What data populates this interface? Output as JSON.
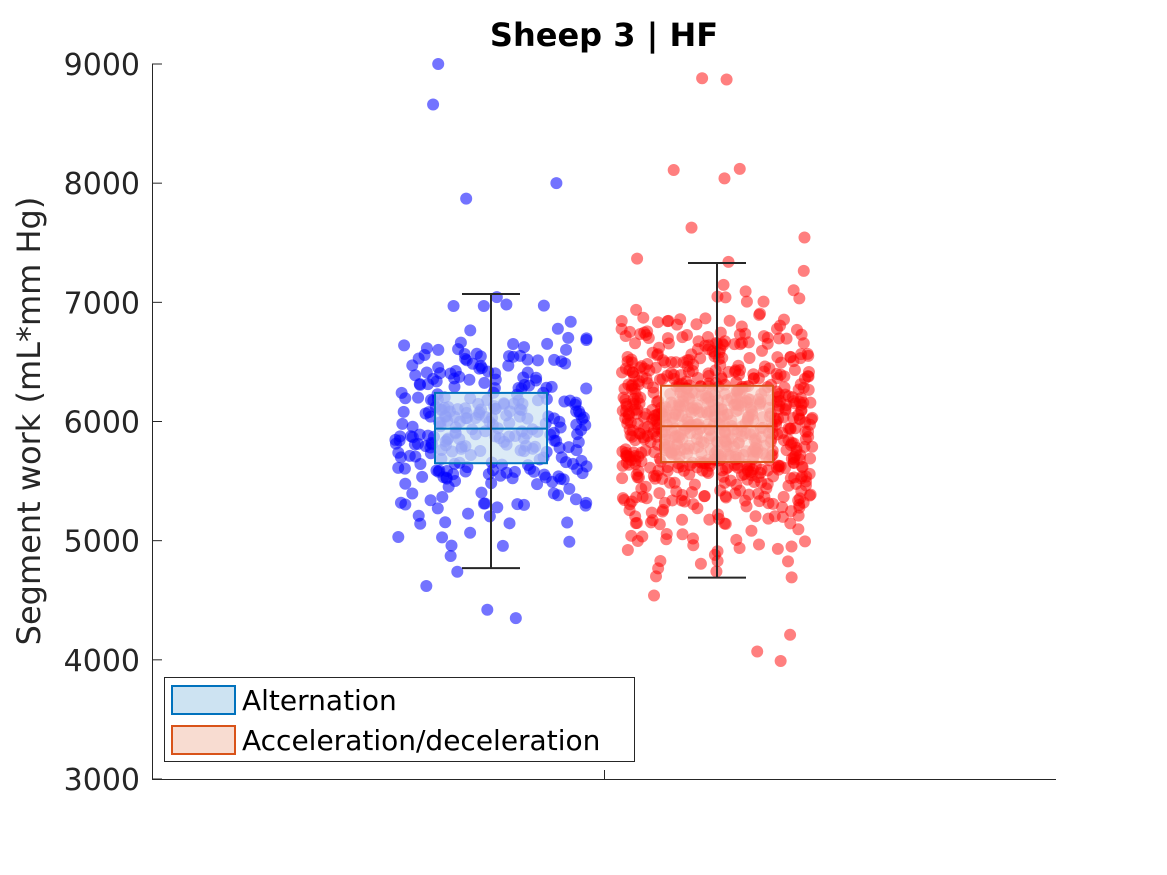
{
  "chart_data": {
    "type": "scatter",
    "subtype": "box-plot-with-jittered-points",
    "title": "Sheep 3 | HF",
    "xlabel": "",
    "ylabel": "Segment work (mL*mm Hg)",
    "ylim": [
      3000,
      9000
    ],
    "yticks": [
      "3000",
      "4000",
      "5000",
      "6000",
      "7000",
      "8000",
      "9000"
    ],
    "grid": false,
    "legend_position": "bottom-left",
    "series": [
      {
        "name": "Alternation",
        "point_color": "#0000ff",
        "box_fill": "#cde3f2",
        "box_edge": "#0072bd",
        "whisker_low": 4770,
        "q1": 5650,
        "median": 5940,
        "q3": 6240,
        "whisker_high": 7070,
        "approx_points": 300,
        "outliers": [
          9000,
          8660,
          8000,
          7870,
          4350,
          4420
        ]
      },
      {
        "name": "Acceleration/deceleration",
        "point_color": "#ff0000",
        "box_fill": "#f8dcd1",
        "box_edge": "#d95319",
        "whisker_low": 4690,
        "q1": 5660,
        "median": 5960,
        "q3": 6300,
        "whisker_high": 7330,
        "approx_points": 750,
        "outliers": [
          8870,
          8880,
          8120,
          8110,
          8040,
          4210,
          4070,
          3990
        ]
      }
    ]
  }
}
